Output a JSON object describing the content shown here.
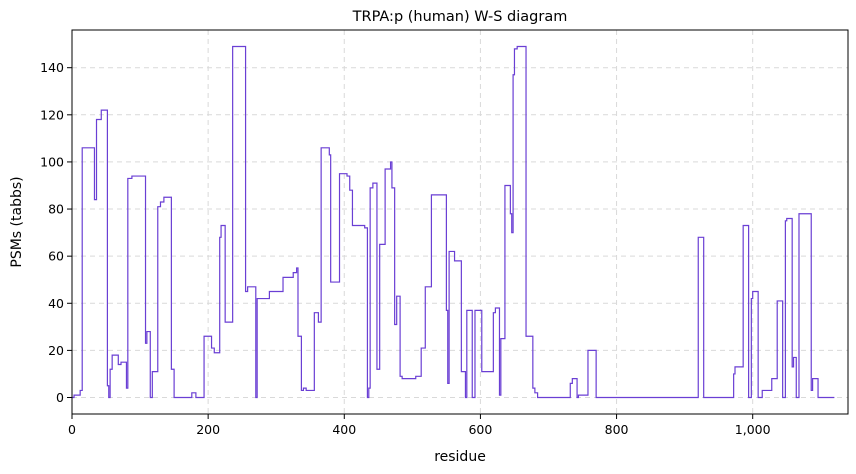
{
  "chart_data": {
    "type": "line",
    "title": "TRPA:p (human) W-S diagram",
    "xlabel": "residue",
    "ylabel": "PSMs (tabbs)",
    "xlim": [
      0,
      1140
    ],
    "ylim": [
      -7,
      156
    ],
    "x_ticks": [
      0,
      200,
      400,
      600,
      800,
      1000
    ],
    "x_tick_labels": [
      "0",
      "200",
      "400",
      "600",
      "800",
      "1,000"
    ],
    "y_ticks": [
      0,
      20,
      40,
      60,
      80,
      100,
      120,
      140
    ],
    "y_tick_labels": [
      "0",
      "20",
      "40",
      "60",
      "80",
      "100",
      "120",
      "140"
    ],
    "grid": true,
    "line_color": "#6a3fd4",
    "series": [
      {
        "points": [
          [
            0,
            0
          ],
          [
            3,
            0
          ],
          [
            3,
            1
          ],
          [
            12,
            1
          ],
          [
            12,
            3
          ],
          [
            15,
            3
          ],
          [
            15,
            106
          ],
          [
            33,
            106
          ],
          [
            33,
            84
          ],
          [
            36,
            84
          ],
          [
            36,
            118
          ],
          [
            43,
            118
          ],
          [
            43,
            122
          ],
          [
            52,
            122
          ],
          [
            52,
            5
          ],
          [
            54,
            5
          ],
          [
            54,
            0
          ],
          [
            56,
            0
          ],
          [
            56,
            12
          ],
          [
            59,
            12
          ],
          [
            59,
            18
          ],
          [
            68,
            18
          ],
          [
            68,
            14
          ],
          [
            72,
            14
          ],
          [
            72,
            15
          ],
          [
            80,
            15
          ],
          [
            80,
            4
          ],
          [
            82,
            4
          ],
          [
            82,
            93
          ],
          [
            88,
            93
          ],
          [
            88,
            94
          ],
          [
            108,
            94
          ],
          [
            108,
            23
          ],
          [
            110,
            23
          ],
          [
            110,
            28
          ],
          [
            115,
            28
          ],
          [
            115,
            0
          ],
          [
            118,
            0
          ],
          [
            118,
            11
          ],
          [
            126,
            11
          ],
          [
            126,
            81
          ],
          [
            130,
            81
          ],
          [
            130,
            83
          ],
          [
            135,
            83
          ],
          [
            135,
            85
          ],
          [
            146,
            85
          ],
          [
            146,
            12
          ],
          [
            150,
            12
          ],
          [
            150,
            0
          ],
          [
            176,
            0
          ],
          [
            176,
            2
          ],
          [
            182,
            2
          ],
          [
            182,
            0
          ],
          [
            194,
            0
          ],
          [
            194,
            26
          ],
          [
            205,
            26
          ],
          [
            205,
            21
          ],
          [
            209,
            21
          ],
          [
            209,
            19
          ],
          [
            217,
            19
          ],
          [
            217,
            68
          ],
          [
            219,
            68
          ],
          [
            219,
            73
          ],
          [
            225,
            73
          ],
          [
            225,
            32
          ],
          [
            236,
            32
          ],
          [
            236,
            149
          ],
          [
            255,
            149
          ],
          [
            255,
            45
          ],
          [
            258,
            45
          ],
          [
            258,
            47
          ],
          [
            270,
            47
          ],
          [
            270,
            0
          ],
          [
            272,
            0
          ],
          [
            272,
            42
          ],
          [
            290,
            42
          ],
          [
            290,
            45
          ],
          [
            310,
            45
          ],
          [
            310,
            51
          ],
          [
            325,
            51
          ],
          [
            325,
            53
          ],
          [
            330,
            53
          ],
          [
            330,
            55
          ],
          [
            332,
            55
          ],
          [
            332,
            26
          ],
          [
            337,
            26
          ],
          [
            337,
            3
          ],
          [
            340,
            3
          ],
          [
            340,
            4
          ],
          [
            344,
            4
          ],
          [
            344,
            3
          ],
          [
            356,
            3
          ],
          [
            356,
            36
          ],
          [
            362,
            36
          ],
          [
            362,
            32
          ],
          [
            366,
            32
          ],
          [
            366,
            106
          ],
          [
            378,
            106
          ],
          [
            378,
            103
          ],
          [
            380,
            103
          ],
          [
            380,
            49
          ],
          [
            393,
            49
          ],
          [
            393,
            95
          ],
          [
            404,
            95
          ],
          [
            404,
            94
          ],
          [
            408,
            94
          ],
          [
            408,
            88
          ],
          [
            412,
            88
          ],
          [
            412,
            73
          ],
          [
            430,
            73
          ],
          [
            430,
            72
          ],
          [
            434,
            72
          ],
          [
            434,
            0
          ],
          [
            436,
            0
          ],
          [
            436,
            4
          ],
          [
            438,
            4
          ],
          [
            438,
            89
          ],
          [
            442,
            89
          ],
          [
            442,
            91
          ],
          [
            448,
            91
          ],
          [
            448,
            12
          ],
          [
            452,
            12
          ],
          [
            452,
            65
          ],
          [
            460,
            65
          ],
          [
            460,
            97
          ],
          [
            468,
            97
          ],
          [
            468,
            100
          ],
          [
            470,
            100
          ],
          [
            470,
            89
          ],
          [
            474,
            89
          ],
          [
            474,
            31
          ],
          [
            477,
            31
          ],
          [
            477,
            43
          ],
          [
            482,
            43
          ],
          [
            482,
            9
          ],
          [
            485,
            9
          ],
          [
            485,
            8
          ],
          [
            505,
            8
          ],
          [
            505,
            9
          ],
          [
            513,
            9
          ],
          [
            513,
            21
          ],
          [
            519,
            21
          ],
          [
            519,
            47
          ],
          [
            528,
            47
          ],
          [
            528,
            86
          ],
          [
            550,
            86
          ],
          [
            550,
            37
          ],
          [
            552,
            37
          ],
          [
            552,
            6
          ],
          [
            554,
            6
          ],
          [
            554,
            62
          ],
          [
            562,
            62
          ],
          [
            562,
            58
          ],
          [
            572,
            58
          ],
          [
            572,
            11
          ],
          [
            578,
            11
          ],
          [
            578,
            0
          ],
          [
            580,
            0
          ],
          [
            580,
            37
          ],
          [
            588,
            37
          ],
          [
            588,
            0
          ],
          [
            592,
            0
          ],
          [
            592,
            37
          ],
          [
            602,
            37
          ],
          [
            602,
            11
          ],
          [
            619,
            11
          ],
          [
            619,
            36
          ],
          [
            622,
            36
          ],
          [
            622,
            38
          ],
          [
            628,
            38
          ],
          [
            628,
            1
          ],
          [
            630,
            1
          ],
          [
            630,
            25
          ],
          [
            636,
            25
          ],
          [
            636,
            90
          ],
          [
            644,
            90
          ],
          [
            644,
            78
          ],
          [
            646,
            78
          ],
          [
            646,
            70
          ],
          [
            648,
            70
          ],
          [
            648,
            137
          ],
          [
            650,
            137
          ],
          [
            650,
            148
          ],
          [
            654,
            148
          ],
          [
            654,
            149
          ],
          [
            667,
            149
          ],
          [
            667,
            26
          ],
          [
            677,
            26
          ],
          [
            677,
            4
          ],
          [
            680,
            4
          ],
          [
            680,
            2
          ],
          [
            684,
            2
          ],
          [
            684,
            0
          ],
          [
            732,
            0
          ],
          [
            732,
            6
          ],
          [
            735,
            6
          ],
          [
            735,
            8
          ],
          [
            742,
            8
          ],
          [
            742,
            0
          ],
          [
            744,
            0
          ],
          [
            744,
            1
          ],
          [
            758,
            1
          ],
          [
            758,
            20
          ],
          [
            770,
            20
          ],
          [
            770,
            0
          ],
          [
            920,
            0
          ],
          [
            920,
            68
          ],
          [
            928,
            68
          ],
          [
            928,
            0
          ],
          [
            972,
            0
          ],
          [
            972,
            10
          ],
          [
            974,
            10
          ],
          [
            974,
            13
          ],
          [
            986,
            13
          ],
          [
            986,
            73
          ],
          [
            994,
            73
          ],
          [
            994,
            0
          ],
          [
            998,
            0
          ],
          [
            998,
            42
          ],
          [
            1000,
            42
          ],
          [
            1000,
            45
          ],
          [
            1008,
            45
          ],
          [
            1008,
            0
          ],
          [
            1014,
            0
          ],
          [
            1014,
            3
          ],
          [
            1028,
            3
          ],
          [
            1028,
            8
          ],
          [
            1036,
            8
          ],
          [
            1036,
            41
          ],
          [
            1044,
            41
          ],
          [
            1044,
            0
          ],
          [
            1048,
            0
          ],
          [
            1048,
            75
          ],
          [
            1050,
            75
          ],
          [
            1050,
            76
          ],
          [
            1058,
            76
          ],
          [
            1058,
            13
          ],
          [
            1060,
            13
          ],
          [
            1060,
            17
          ],
          [
            1064,
            17
          ],
          [
            1064,
            0
          ],
          [
            1068,
            0
          ],
          [
            1068,
            78
          ],
          [
            1086,
            78
          ],
          [
            1086,
            3
          ],
          [
            1088,
            3
          ],
          [
            1088,
            8
          ],
          [
            1096,
            8
          ],
          [
            1096,
            0
          ],
          [
            1120,
            0
          ]
        ]
      }
    ]
  }
}
